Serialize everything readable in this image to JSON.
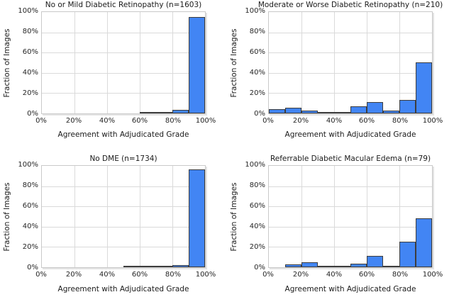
{
  "figure": {
    "description": "2x2 grid of histograms of grader agreement with adjudicated grade",
    "x_axis_label": "Agreement with Adjudicated Grade",
    "y_axis_label": "Fraction of Images"
  },
  "colors": {
    "bar_fill": "#4285f4",
    "bar_edge": "#3d3d3d",
    "gridline": "#dadada",
    "plot_border": "#c9c9c9",
    "text": "#262626",
    "background": "#ffffff"
  },
  "chart_data": [
    {
      "type": "bar",
      "title": "No or Mild Diabetic Retinopathy (n=1603)",
      "xlabel": "Agreement with Adjudicated Grade",
      "ylabel": "Fraction of Images",
      "xlim": [
        0,
        100
      ],
      "ylim": [
        0,
        100
      ],
      "grid": true,
      "legend": null,
      "bin_width_percent": 10,
      "bin_edges_percent": [
        0,
        10,
        20,
        30,
        40,
        50,
        60,
        70,
        80,
        90,
        100
      ],
      "values_percent": [
        0,
        0,
        0,
        0,
        0,
        0,
        0.7,
        0.6,
        3.7,
        95.0
      ],
      "x_tick_labels": [
        "0%",
        "20%",
        "40%",
        "60%",
        "80%",
        "100%"
      ],
      "y_tick_labels": [
        "0%",
        "20%",
        "40%",
        "60%",
        "80%",
        "100%"
      ],
      "x_tick_values": [
        0,
        20,
        40,
        60,
        80,
        100
      ],
      "y_tick_values": [
        0,
        20,
        40,
        60,
        80,
        100
      ]
    },
    {
      "type": "bar",
      "title": "Moderate or Worse Diabetic Retinopathy (n=210)",
      "xlabel": "Agreement with Adjudicated Grade",
      "ylabel": "Fraction of Images",
      "xlim": [
        0,
        100
      ],
      "ylim": [
        0,
        100
      ],
      "grid": true,
      "legend": null,
      "bin_width_percent": 10,
      "bin_edges_percent": [
        0,
        10,
        20,
        30,
        40,
        50,
        60,
        70,
        80,
        90,
        100
      ],
      "values_percent": [
        4.3,
        5.7,
        2.9,
        1.4,
        0.5,
        7.1,
        11.4,
        2.9,
        13.3,
        50.0
      ],
      "x_tick_labels": [
        "0%",
        "20%",
        "40%",
        "60%",
        "80%",
        "100%"
      ],
      "y_tick_labels": [
        "0%",
        "20%",
        "40%",
        "60%",
        "80%",
        "100%"
      ],
      "x_tick_values": [
        0,
        20,
        40,
        60,
        80,
        100
      ],
      "y_tick_values": [
        0,
        20,
        40,
        60,
        80,
        100
      ]
    },
    {
      "type": "bar",
      "title": "No DME (n=1734)",
      "xlabel": "Agreement with Adjudicated Grade",
      "ylabel": "Fraction of Images",
      "xlim": [
        0,
        100
      ],
      "ylim": [
        0,
        100
      ],
      "grid": true,
      "legend": null,
      "bin_width_percent": 10,
      "bin_edges_percent": [
        0,
        10,
        20,
        30,
        40,
        50,
        60,
        70,
        80,
        90,
        100
      ],
      "values_percent": [
        0,
        0,
        0,
        0,
        0,
        0.6,
        0.6,
        0.2,
        2.0,
        96.2
      ],
      "x_tick_labels": [
        "0%",
        "20%",
        "40%",
        "60%",
        "80%",
        "100%"
      ],
      "y_tick_labels": [
        "0%",
        "20%",
        "40%",
        "60%",
        "80%",
        "100%"
      ],
      "x_tick_values": [
        0,
        20,
        40,
        60,
        80,
        100
      ],
      "y_tick_values": [
        0,
        20,
        40,
        60,
        80,
        100
      ]
    },
    {
      "type": "bar",
      "title": "Referrable Diabetic Macular Edema (n=79)",
      "xlabel": "Agreement with Adjudicated Grade",
      "ylabel": "Fraction of Images",
      "xlim": [
        0,
        100
      ],
      "ylim": [
        0,
        100
      ],
      "grid": true,
      "legend": null,
      "bin_width_percent": 10,
      "bin_edges_percent": [
        0,
        10,
        20,
        30,
        40,
        50,
        60,
        70,
        80,
        90,
        100
      ],
      "values_percent": [
        0,
        2.5,
        5.1,
        1.3,
        1.3,
        3.8,
        11.4,
        1.3,
        25.3,
        48.1
      ],
      "x_tick_labels": [
        "0%",
        "20%",
        "40%",
        "60%",
        "80%",
        "100%"
      ],
      "y_tick_labels": [
        "0%",
        "20%",
        "40%",
        "60%",
        "80%",
        "100%"
      ],
      "x_tick_values": [
        0,
        20,
        40,
        60,
        80,
        100
      ],
      "y_tick_values": [
        0,
        20,
        40,
        60,
        80,
        100
      ]
    }
  ]
}
